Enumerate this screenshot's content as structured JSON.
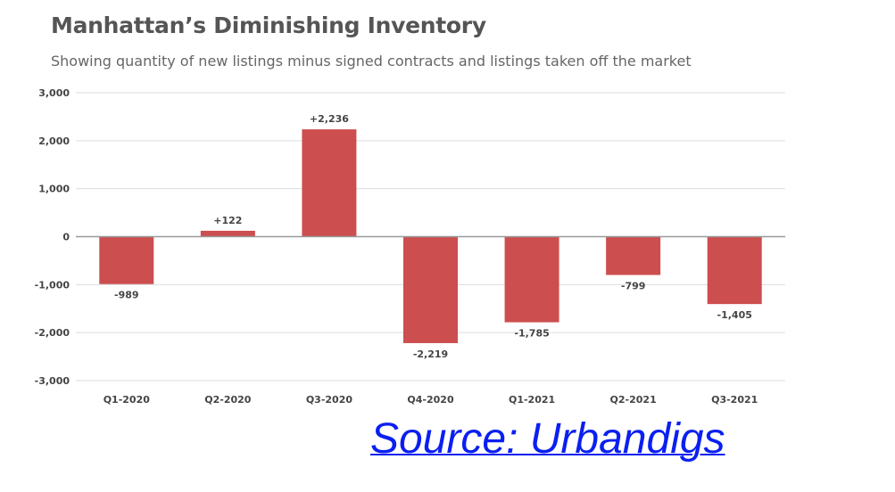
{
  "chart_data": {
    "type": "bar",
    "title": "Manhattan’s Diminishing Inventory",
    "subtitle": "Showing quantity of new listings minus signed contracts and listings taken off the market",
    "categories": [
      "Q1-2020",
      "Q2-2020",
      "Q3-2020",
      "Q4-2020",
      "Q1-2021",
      "Q2-2021",
      "Q3-2021"
    ],
    "values": [
      -989,
      122,
      2236,
      -2219,
      -1785,
      -799,
      -1405
    ],
    "data_labels": [
      "-989",
      "+122",
      "+2,236",
      "-2,219",
      "-1,785",
      "-799",
      "-1,405"
    ],
    "ylim": [
      -3000,
      3000
    ],
    "yticks": [
      3000,
      2000,
      1000,
      0,
      -1000,
      -2000,
      -3000
    ],
    "ytick_labels": [
      "3,000",
      "2,000",
      "1,000",
      "0",
      "-1,000",
      "-2,000",
      "-3,000"
    ],
    "xlabel": "",
    "ylabel": "",
    "grid": true,
    "bar_color": "#cc4e4e",
    "grid_color": "#dddddd",
    "zero_line_color": "#999999"
  },
  "source": {
    "label": "Source: Urbandigs",
    "color": "#0a1ff0"
  }
}
